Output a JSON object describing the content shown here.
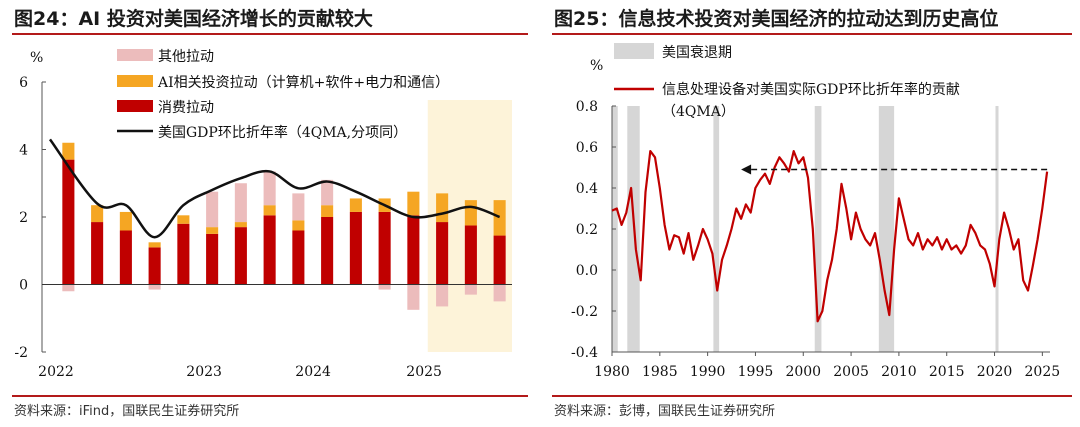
{
  "left": {
    "title": "图24：AI 投资对美国经济增长的贡献较大",
    "source": "资料来源：iFind，国联民生证券研究所",
    "chart_data": {
      "type": "bar",
      "stacked": true,
      "ylabel": "%",
      "ylim": [
        -2,
        6
      ],
      "yticks": [
        -2,
        0,
        2,
        4,
        6
      ],
      "xticks": [
        "2022",
        "2023",
        "2024",
        "2025"
      ],
      "categories": [
        "2022Q1",
        "2022Q2",
        "2022Q3",
        "2022Q4",
        "2023Q1",
        "2023Q2",
        "2023Q3",
        "2023Q4",
        "2024Q1",
        "2024Q2",
        "2024Q3",
        "2024Q4",
        "2025Q1",
        "2025Q2",
        "2025Q3",
        "2025Q4"
      ],
      "highlight_from": "2025Q2",
      "series": [
        {
          "name": "其他拉动",
          "color": "#ecbcbc",
          "values": [
            -0.2,
            0,
            0,
            -0.15,
            0,
            1.05,
            1.15,
            1.0,
            0.8,
            0.75,
            0,
            -0.15,
            -0.75,
            -0.65,
            -0.3,
            -0.5
          ]
        },
        {
          "name": "AI相关投资拉动（计算机+软件+电力和通信）",
          "color": "#f5a623",
          "values": [
            0.5,
            0.5,
            0.55,
            0.15,
            0.25,
            0.2,
            0.15,
            0.3,
            0.3,
            0.35,
            0.4,
            0.4,
            0.7,
            0.85,
            0.75,
            1.05
          ]
        },
        {
          "name": "消费拉动",
          "color": "#c00000",
          "values": [
            3.7,
            1.85,
            1.6,
            1.1,
            1.8,
            1.5,
            1.7,
            2.05,
            1.6,
            2.0,
            2.15,
            2.15,
            2.05,
            1.85,
            1.75,
            1.45
          ]
        }
      ],
      "line": {
        "name": "美国GDP环比折年率（4QMA,分项同）",
        "color": "#111111",
        "values": [
          4.3,
          2.4,
          2.35,
          1.4,
          2.35,
          2.8,
          3.15,
          3.35,
          2.85,
          3.05,
          2.75,
          2.35,
          2.0,
          2.1,
          2.3,
          2.0
        ]
      }
    }
  },
  "right": {
    "title": "图25：信息技术投资对美国经济的拉动达到历史高位",
    "source": "资料来源：彭博，国联民生证券研究所",
    "chart_data": {
      "type": "line",
      "ylabel": "%",
      "ylim": [
        -0.4,
        0.8
      ],
      "yticks": [
        "-0.4",
        "-0.2",
        "0.0",
        "0.2",
        "0.4",
        "0.6",
        "0.8"
      ],
      "xlim": [
        1980,
        2025.8
      ],
      "xticks": [
        "1980",
        "1985",
        "1990",
        "1995",
        "2000",
        "2005",
        "2010",
        "2015",
        "2020",
        "2025"
      ],
      "recession_label": "美国衰退期",
      "recessions": [
        [
          1980.0,
          1980.6
        ],
        [
          1981.6,
          1982.9
        ],
        [
          1990.6,
          1991.2
        ],
        [
          2001.2,
          2001.9
        ],
        [
          2007.9,
          2009.5
        ],
        [
          2020.1,
          2020.4
        ]
      ],
      "series": [
        {
          "name": "信息处理设备对美国实际GDP环比折年率的贡献（4QMA）",
          "color": "#c00000",
          "x": [
            1980.0,
            1980.5,
            1981.0,
            1981.5,
            1982.0,
            1982.5,
            1983.0,
            1983.5,
            1984.0,
            1984.5,
            1985.0,
            1985.5,
            1986.0,
            1986.5,
            1987.0,
            1987.5,
            1988.0,
            1988.5,
            1989.0,
            1989.5,
            1990.0,
            1990.5,
            1991.0,
            1991.5,
            1992.0,
            1992.5,
            1993.0,
            1993.5,
            1994.0,
            1994.5,
            1995.0,
            1995.5,
            1996.0,
            1996.5,
            1997.0,
            1997.5,
            1998.0,
            1998.5,
            1999.0,
            1999.5,
            2000.0,
            2000.5,
            2001.0,
            2001.5,
            2002.0,
            2002.5,
            2003.0,
            2003.5,
            2004.0,
            2004.5,
            2005.0,
            2005.5,
            2006.0,
            2006.5,
            2007.0,
            2007.5,
            2008.0,
            2008.5,
            2009.0,
            2009.5,
            2010.0,
            2010.5,
            2011.0,
            2011.5,
            2012.0,
            2012.5,
            2013.0,
            2013.5,
            2014.0,
            2014.5,
            2015.0,
            2015.5,
            2016.0,
            2016.5,
            2017.0,
            2017.5,
            2018.0,
            2018.5,
            2019.0,
            2019.5,
            2020.0,
            2020.5,
            2021.0,
            2021.5,
            2022.0,
            2022.5,
            2023.0,
            2023.5,
            2024.0,
            2024.5,
            2025.0,
            2025.5
          ],
          "values": [
            0.29,
            0.3,
            0.22,
            0.28,
            0.4,
            0.1,
            -0.05,
            0.38,
            0.58,
            0.55,
            0.4,
            0.22,
            0.1,
            0.17,
            0.16,
            0.08,
            0.18,
            0.05,
            0.12,
            0.2,
            0.15,
            0.08,
            -0.1,
            0.05,
            0.12,
            0.2,
            0.3,
            0.25,
            0.32,
            0.28,
            0.4,
            0.44,
            0.47,
            0.42,
            0.5,
            0.55,
            0.52,
            0.48,
            0.58,
            0.52,
            0.55,
            0.45,
            0.2,
            -0.25,
            -0.2,
            -0.05,
            0.05,
            0.2,
            0.42,
            0.3,
            0.15,
            0.28,
            0.2,
            0.15,
            0.12,
            0.18,
            0.05,
            -0.1,
            -0.22,
            0.1,
            0.35,
            0.25,
            0.15,
            0.12,
            0.18,
            0.1,
            0.15,
            0.12,
            0.16,
            0.1,
            0.15,
            0.1,
            0.12,
            0.08,
            0.12,
            0.22,
            0.18,
            0.12,
            0.1,
            0.03,
            -0.08,
            0.15,
            0.28,
            0.2,
            0.1,
            0.15,
            -0.05,
            -0.1,
            0.02,
            0.15,
            0.3,
            0.48
          ]
        }
      ],
      "annotation": {
        "type": "dashed-arrow",
        "from": [
          2025.5,
          0.49
        ],
        "to": [
          1993.5,
          0.49
        ]
      }
    }
  }
}
